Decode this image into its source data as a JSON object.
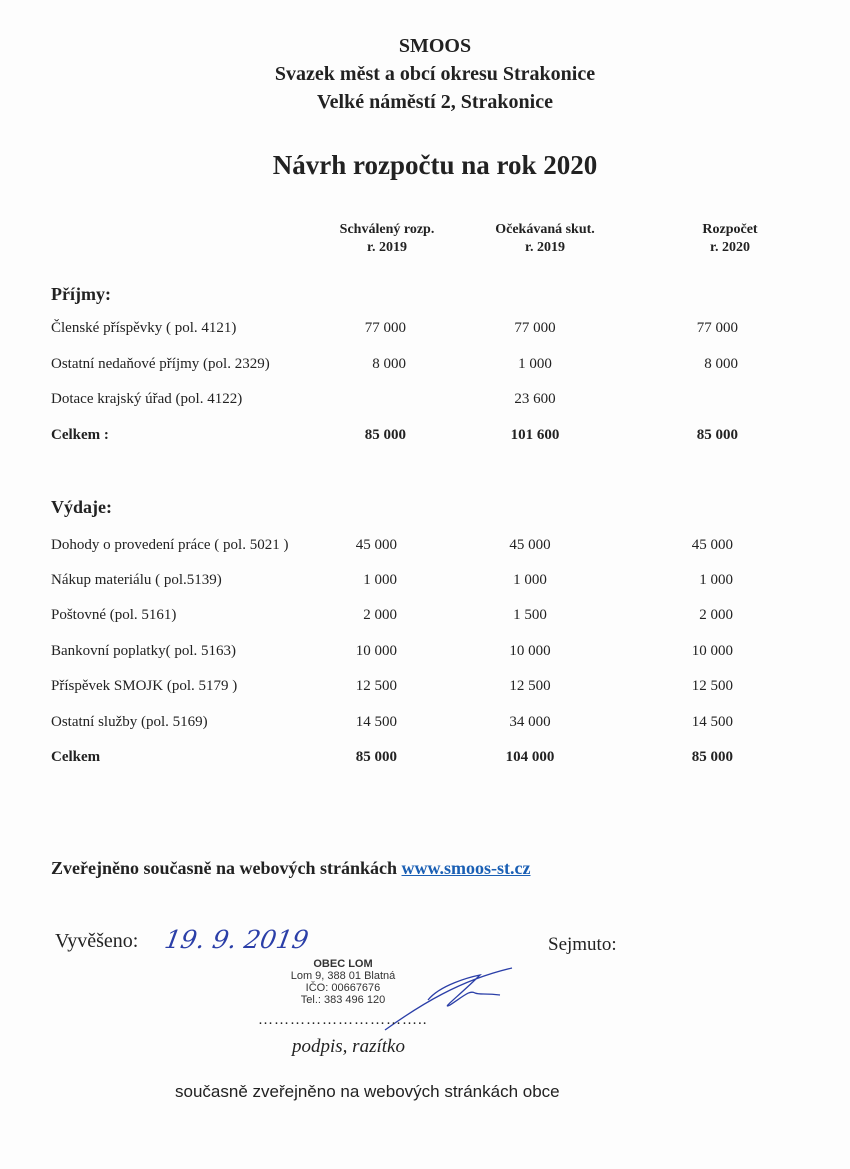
{
  "header": {
    "org": "SMOOS",
    "name": "Svazek měst a obcí okresu Strakonice",
    "address": "Velké náměstí 2, Strakonice"
  },
  "title": "Návrh rozpočtu na rok 2020",
  "columns": [
    {
      "line1": "Schválený rozp.",
      "line2": "r. 2019"
    },
    {
      "line1": "Očekávaná skut.",
      "line2": "r. 2019"
    },
    {
      "line1": "Rozpočet",
      "line2": "r. 2020"
    }
  ],
  "income": {
    "heading": "Příjmy:",
    "rows": [
      {
        "label": "Členské příspěvky   ( pol. 4121)",
        "v": [
          "77 000",
          "77 000",
          "77 000"
        ]
      },
      {
        "label": "Ostatní nedaňové příjmy (pol. 2329)",
        "v": [
          "8 000",
          "1 000",
          "8 000"
        ]
      },
      {
        "label": "Dotace krajský úřad  (pol. 4122)",
        "v": [
          "",
          "23 600",
          ""
        ]
      }
    ],
    "total": {
      "label": "Celkem :",
      "v": [
        "85 000",
        "101 600",
        "85 000"
      ]
    }
  },
  "expenses": {
    "heading": "Výdaje:",
    "rows": [
      {
        "label": "Dohody o provedení práce ( pol. 5021 )",
        "v": [
          "45 000",
          "45 000",
          "45 000"
        ]
      },
      {
        "label": "Nákup materiálu ( pol.5139)",
        "v": [
          "1 000",
          "1 000",
          "1 000"
        ]
      },
      {
        "label": " Poštovné  (pol. 5161)",
        "v": [
          "2 000",
          "1 500",
          "2 000"
        ]
      },
      {
        "label": "Bankovní poplatky( pol. 5163)",
        "v": [
          "10 000",
          "10 000",
          "10 000"
        ]
      },
      {
        "label": "Příspěvek SMOJK  (pol. 5179 )",
        "v": [
          "12 500",
          "12 500",
          "12  500"
        ]
      },
      {
        "label": "Ostatní služby (pol. 5169)",
        "v": [
          "14 500",
          "34 000",
          "14 500"
        ]
      }
    ],
    "total": {
      "label": "Celkem",
      "v": [
        "85 000",
        "104 000",
        "85 000"
      ]
    }
  },
  "published": {
    "text": "Zveřejněno současně na webových stránkách",
    "link": "www.smoos-st.cz",
    "link_color": "#1a5fb4"
  },
  "posting": {
    "posted_label": "Vyvěšeno:",
    "posted_date": "19. 9. 2019",
    "removed_label": "Sejmuto:",
    "dots": "…………………………..",
    "signature_label": "podpis, razítko"
  },
  "stamp": {
    "name": "OBEC LOM",
    "address": "Lom 9, 388 01 Blatná",
    "ico": "IČO: 00667676",
    "tel": "Tel.: 383 496 120"
  },
  "footer": "současně zveřejněno na webových stránkách obce"
}
